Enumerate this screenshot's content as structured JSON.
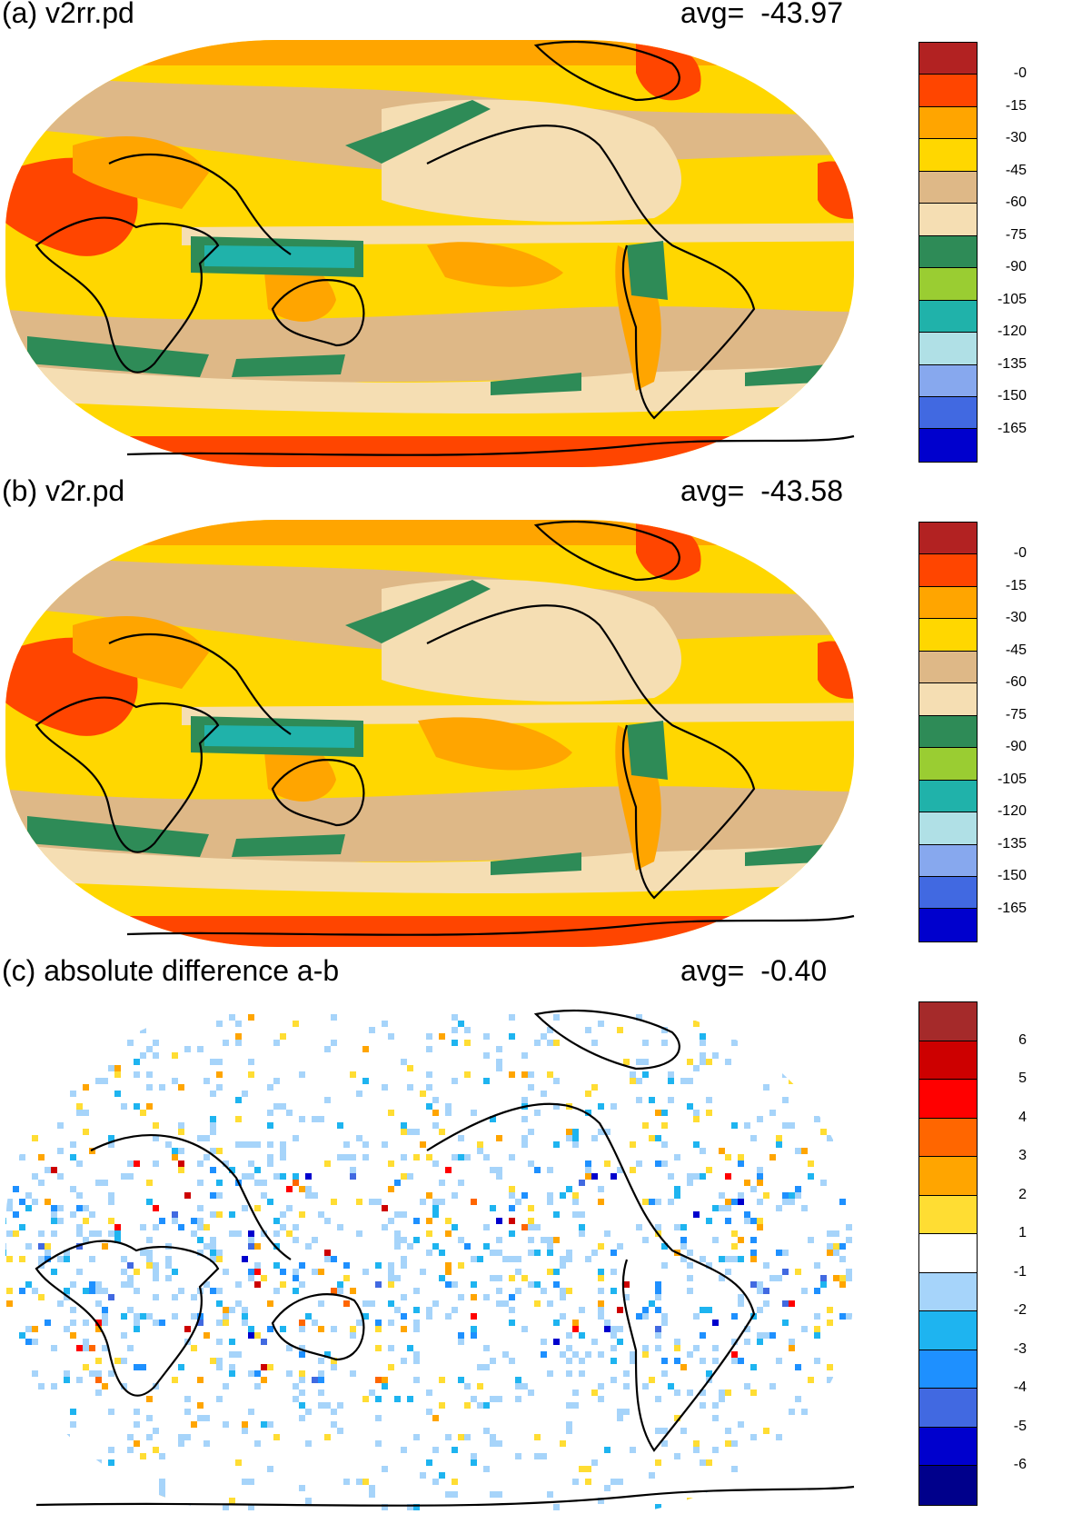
{
  "panels": [
    {
      "title": "(a) v2rr.pd",
      "avg_label": "avg=",
      "avg_value": "-43.97",
      "colorbar": {
        "colors": [
          "#b22222",
          "#ff4500",
          "#ffa500",
          "#ffd700",
          "#deb887",
          "#f5deb3",
          "#2e8b57",
          "#9acd32",
          "#20b2aa",
          "#b0e0e6",
          "#87a8ee",
          "#4169e1",
          "#0000cd"
        ],
        "labels": [
          "-0",
          "-15",
          "-30",
          "-45",
          "-60",
          "-75",
          "-90",
          "-105",
          "-120",
          "-135",
          "-150",
          "-165"
        ]
      }
    },
    {
      "title": "(b) v2r.pd",
      "avg_label": "avg=",
      "avg_value": "-43.58",
      "colorbar": {
        "colors": [
          "#b22222",
          "#ff4500",
          "#ffa500",
          "#ffd700",
          "#deb887",
          "#f5deb3",
          "#2e8b57",
          "#9acd32",
          "#20b2aa",
          "#b0e0e6",
          "#87a8ee",
          "#4169e1",
          "#0000cd"
        ],
        "labels": [
          "-0",
          "-15",
          "-30",
          "-45",
          "-60",
          "-75",
          "-90",
          "-105",
          "-120",
          "-135",
          "-150",
          "-165"
        ]
      }
    },
    {
      "title": "(c) absolute difference a-b",
      "avg_label": "avg=",
      "avg_value": "-0.40",
      "colorbar": {
        "colors": [
          "#a52a2a",
          "#cd0000",
          "#ff0000",
          "#ff6600",
          "#ffa500",
          "#ffdd33",
          "#ffffff",
          "#a6d4fa",
          "#1eb4f0",
          "#1e90ff",
          "#4169e1",
          "#0000cd",
          "#00008b"
        ],
        "labels": [
          "6",
          "5",
          "4",
          "3",
          "2",
          "1",
          "-1",
          "-2",
          "-3",
          "-4",
          "-5",
          "-6"
        ]
      }
    }
  ]
}
